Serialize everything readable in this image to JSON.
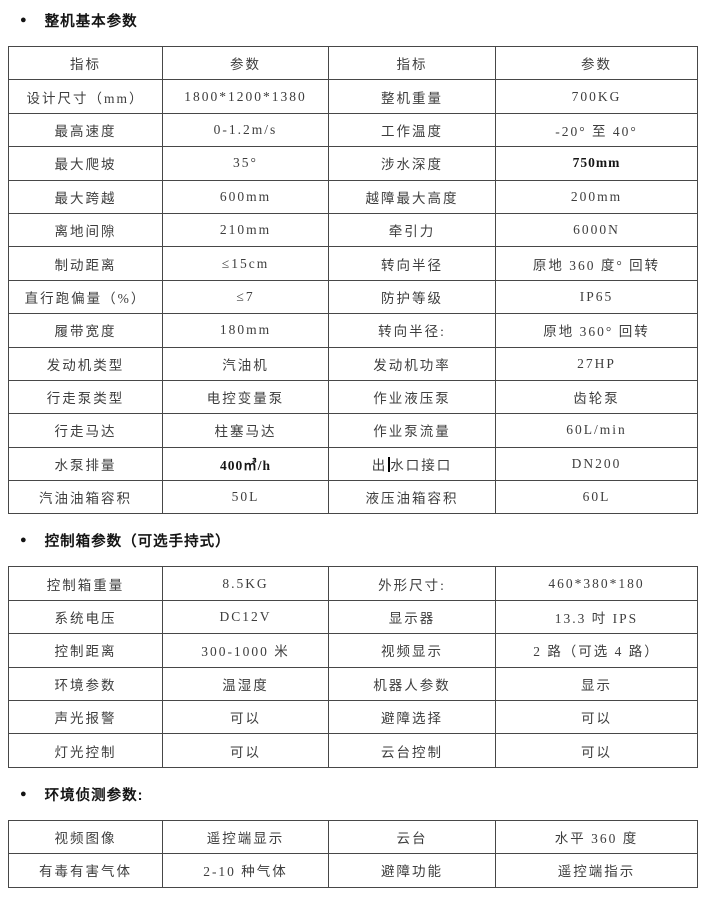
{
  "colors": {
    "background": "#ffffff",
    "table_border": "#474747",
    "body_text": "#3d3d3d",
    "heading_text": "#141414"
  },
  "sections": [
    {
      "heading": {
        "bullet": "●",
        "label": "整机基本参数"
      },
      "rows": [
        [
          "指标",
          "参数",
          "指标",
          "参数"
        ],
        [
          "设计尺寸（mm）",
          "1800*1200*1380",
          "整机重量",
          "700KG"
        ],
        [
          "最高速度",
          "0-1.2m/s",
          "工作温度",
          "-20° 至 40°"
        ],
        [
          "最大爬坡",
          "35°",
          "涉水深度",
          {
            "text": "750mm",
            "bold": true
          }
        ],
        [
          "最大跨越",
          "600mm",
          "越障最大高度",
          "200mm"
        ],
        [
          "离地间隙",
          "210mm",
          "牵引力",
          "6000N"
        ],
        [
          "制动距离",
          "≤15cm",
          "转向半径",
          "原地 360 度° 回转"
        ],
        [
          "直行跑偏量（%）",
          "≤7",
          "防护等级",
          "IP65"
        ],
        [
          "履带宽度",
          "180mm",
          "转向半径:",
          "原地 360° 回转"
        ],
        [
          "发动机类型",
          "汽油机",
          "发动机功率",
          "27HP"
        ],
        [
          "行走泵类型",
          "电控变量泵",
          "作业液压泵",
          "齿轮泵"
        ],
        [
          "行走马达",
          "柱塞马达",
          "作业泵流量",
          "60L/min"
        ],
        [
          "水泵排量",
          {
            "text": "400㎥/h",
            "bold": true
          },
          {
            "text": "出水口接口",
            "cursor_at": 1
          },
          "DN200"
        ],
        [
          "汽油油箱容积",
          "50L",
          "液压油箱容积",
          "60L"
        ]
      ]
    },
    {
      "heading": {
        "bullet": "●",
        "label": "控制箱参数（可选手持式）"
      },
      "rows": [
        [
          "控制箱重量",
          "8.5KG",
          "外形尺寸:",
          "460*380*180"
        ],
        [
          "系统电压",
          "DC12V",
          "显示器",
          "13.3 吋 IPS"
        ],
        [
          "控制距离",
          "300-1000 米",
          "视频显示",
          "2 路（可选 4 路）"
        ],
        [
          "环境参数",
          "温湿度",
          "机器人参数",
          "显示"
        ],
        [
          "声光报警",
          "可以",
          "避障选择",
          "可以"
        ],
        [
          "灯光控制",
          "可以",
          "云台控制",
          "可以"
        ]
      ]
    },
    {
      "heading": {
        "bullet": "●",
        "label": "环境侦测参数:"
      },
      "rows": [
        [
          "视频图像",
          "遥控端显示",
          "云台",
          "水平 360 度"
        ],
        [
          "有毒有害气体",
          "2-10 种气体",
          "避障功能",
          "遥控端指示"
        ]
      ]
    }
  ]
}
